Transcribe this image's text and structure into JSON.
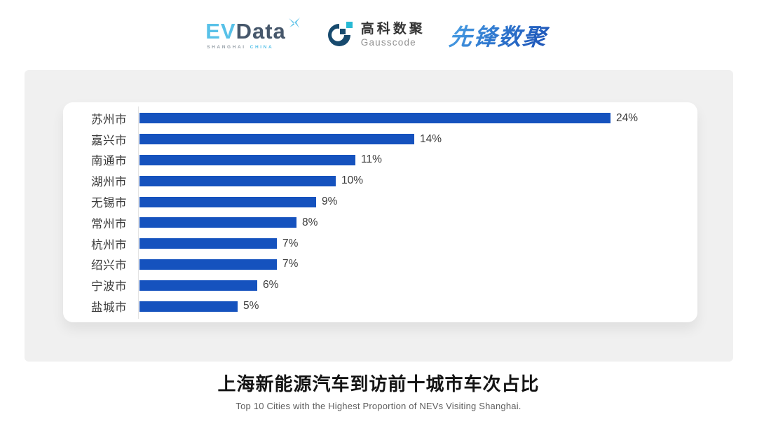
{
  "header": {
    "evdata": {
      "ev": "EV",
      "data": "Data",
      "sub_shanghai": "SHANGHAI",
      "sub_china": "CHINA"
    },
    "gausscode": {
      "cn": "高科数聚",
      "en": "Gausscode"
    },
    "xianfeng": {
      "text": "先锋数聚"
    }
  },
  "chart_data": {
    "type": "bar",
    "orientation": "horizontal",
    "title": "上海新能源汽车到访前十城市车次占比",
    "subtitle": "Top 10 Cities with the Highest Proportion of  NEVs Visiting Shanghai.",
    "categories": [
      "苏州市",
      "嘉兴市",
      "南通市",
      "湖州市",
      "无锡市",
      "常州市",
      "杭州市",
      "绍兴市",
      "宁波市",
      "盐城市"
    ],
    "values": [
      24,
      14,
      11,
      10,
      9,
      8,
      7,
      7,
      6,
      5
    ],
    "value_labels": [
      "24%",
      "14%",
      "11%",
      "10%",
      "9%",
      "8%",
      "7%",
      "7%",
      "6%",
      "5%"
    ],
    "unit": "%",
    "xlim": [
      0,
      28.5
    ],
    "grid": false,
    "legend": false,
    "bar_color": "#1552be",
    "axis_line_color": "#e3e3e3",
    "label_color": "#3c3c3c"
  },
  "footer": {
    "title": "上海新能源汽车到访前十城市车次占比",
    "subtitle": "Top 10 Cities with the Highest Proportion of  NEVs Visiting Shanghai."
  }
}
